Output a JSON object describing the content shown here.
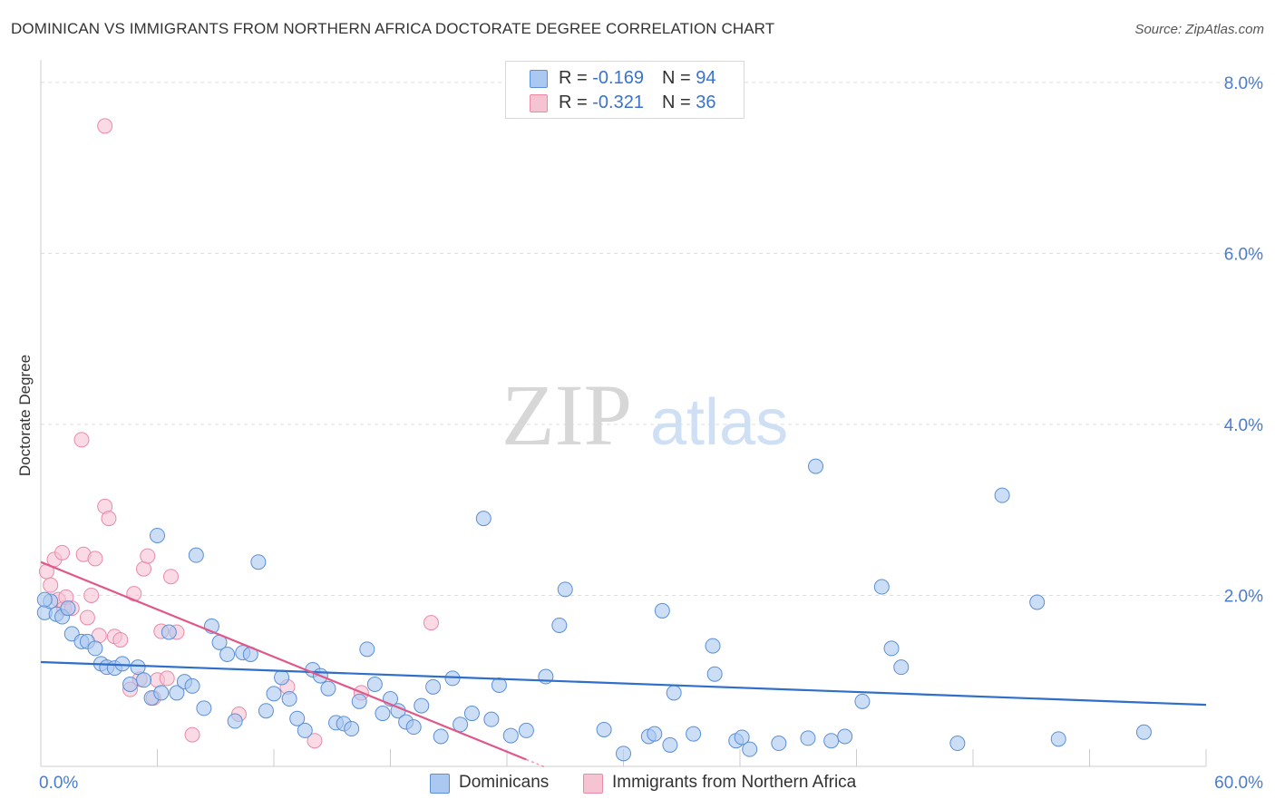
{
  "title": "DOMINICAN VS IMMIGRANTS FROM NORTHERN AFRICA DOCTORATE DEGREE CORRELATION CHART",
  "source": "Source: ZipAtlas.com",
  "watermark": {
    "zip": "ZIP",
    "atlas": "atlas"
  },
  "legend": {
    "rows": [
      {
        "r_label": "R = ",
        "r_value": "-0.169",
        "n_label": "N = ",
        "n_value": "94"
      },
      {
        "r_label": "R = ",
        "r_value": "-0.321",
        "n_label": "N = ",
        "n_value": "36"
      }
    ],
    "bottom": [
      {
        "label": "Dominicans"
      },
      {
        "label": "Immigrants from Northern Africa"
      }
    ]
  },
  "colors": {
    "blue_fill": "#aac8f0",
    "blue_stroke": "#5b8fd6",
    "blue_line": "#2f6fc9",
    "pink_fill": "#f6c3d3",
    "pink_stroke": "#e88aa8",
    "pink_line": "#e0588a",
    "tick_text": "#4a7ccf",
    "grid": "#dddddd"
  },
  "chart_data": {
    "type": "scatter",
    "title": "DOMINICAN VS IMMIGRANTS FROM NORTHERN AFRICA DOCTORATE DEGREE CORRELATION CHART",
    "xlabel": "",
    "ylabel": "Doctorate Degree",
    "xlim": [
      0,
      60
    ],
    "ylim": [
      0,
      8.2
    ],
    "x_tick_labels": [
      "0.0%",
      "60.0%"
    ],
    "y_ticks": [
      2.0,
      4.0,
      6.0,
      8.0
    ],
    "y_tick_labels": [
      "2.0%",
      "4.0%",
      "6.0%",
      "8.0%"
    ],
    "grid": true,
    "legend_position": "top-center",
    "series": [
      {
        "name": "Dominicans",
        "color": "#5b8fd6",
        "trend": {
          "x": [
            0,
            60
          ],
          "y": [
            1.22,
            0.72
          ]
        },
        "points": [
          [
            0.2,
            1.8
          ],
          [
            0.5,
            1.93
          ],
          [
            0.8,
            1.78
          ],
          [
            1.1,
            1.75
          ],
          [
            1.4,
            1.85
          ],
          [
            1.6,
            1.55
          ],
          [
            2.1,
            1.46
          ],
          [
            2.4,
            1.46
          ],
          [
            2.8,
            1.38
          ],
          [
            3.1,
            1.2
          ],
          [
            3.4,
            1.16
          ],
          [
            3.8,
            1.15
          ],
          [
            4.2,
            1.2
          ],
          [
            4.6,
            0.96
          ],
          [
            5.0,
            1.16
          ],
          [
            5.3,
            1.01
          ],
          [
            5.7,
            0.8
          ],
          [
            6.0,
            2.7
          ],
          [
            6.2,
            0.86
          ],
          [
            6.6,
            1.57
          ],
          [
            7.0,
            0.86
          ],
          [
            7.4,
            0.99
          ],
          [
            7.8,
            0.94
          ],
          [
            8.0,
            2.47
          ],
          [
            8.4,
            0.68
          ],
          [
            8.8,
            1.64
          ],
          [
            9.2,
            1.45
          ],
          [
            9.6,
            1.31
          ],
          [
            10.0,
            0.53
          ],
          [
            10.4,
            1.33
          ],
          [
            10.8,
            1.31
          ],
          [
            11.2,
            2.39
          ],
          [
            11.6,
            0.65
          ],
          [
            12.0,
            0.85
          ],
          [
            12.4,
            1.04
          ],
          [
            12.8,
            0.79
          ],
          [
            13.2,
            0.56
          ],
          [
            13.6,
            0.42
          ],
          [
            14.0,
            1.13
          ],
          [
            14.4,
            1.06
          ],
          [
            14.8,
            0.91
          ],
          [
            15.2,
            0.51
          ],
          [
            15.6,
            0.5
          ],
          [
            16.0,
            0.44
          ],
          [
            16.4,
            0.76
          ],
          [
            16.8,
            1.37
          ],
          [
            17.2,
            0.96
          ],
          [
            17.6,
            0.62
          ],
          [
            18.0,
            0.79
          ],
          [
            18.4,
            0.65
          ],
          [
            18.8,
            0.52
          ],
          [
            19.2,
            0.46
          ],
          [
            19.6,
            0.71
          ],
          [
            20.2,
            0.93
          ],
          [
            20.6,
            0.35
          ],
          [
            21.2,
            1.03
          ],
          [
            21.6,
            0.49
          ],
          [
            22.2,
            0.62
          ],
          [
            22.8,
            2.9
          ],
          [
            23.2,
            0.55
          ],
          [
            23.6,
            0.95
          ],
          [
            24.2,
            0.36
          ],
          [
            25.0,
            0.42
          ],
          [
            26.0,
            1.05
          ],
          [
            26.7,
            1.65
          ],
          [
            27.0,
            2.07
          ],
          [
            29.0,
            0.43
          ],
          [
            30.0,
            0.15
          ],
          [
            31.3,
            0.35
          ],
          [
            31.6,
            0.38
          ],
          [
            32.0,
            1.82
          ],
          [
            32.4,
            0.25
          ],
          [
            32.6,
            0.86
          ],
          [
            33.6,
            0.38
          ],
          [
            34.6,
            1.41
          ],
          [
            34.7,
            1.08
          ],
          [
            35.8,
            0.3
          ],
          [
            36.1,
            0.34
          ],
          [
            36.5,
            0.2
          ],
          [
            38.0,
            0.27
          ],
          [
            39.5,
            0.33
          ],
          [
            39.9,
            3.51
          ],
          [
            40.7,
            0.3
          ],
          [
            41.4,
            0.35
          ],
          [
            42.3,
            0.76
          ],
          [
            43.3,
            2.1
          ],
          [
            43.8,
            1.38
          ],
          [
            44.3,
            1.16
          ],
          [
            47.2,
            0.27
          ],
          [
            49.5,
            3.17
          ],
          [
            51.3,
            1.92
          ],
          [
            52.4,
            0.32
          ],
          [
            56.8,
            0.4
          ],
          [
            0.2,
            1.95
          ]
        ]
      },
      {
        "name": "Immigrants from Northern Africa",
        "color": "#e88aa8",
        "trend": {
          "x": [
            0,
            25
          ],
          "y": [
            2.39,
            0.08
          ]
        },
        "points": [
          [
            0.3,
            2.28
          ],
          [
            0.5,
            2.12
          ],
          [
            0.7,
            2.42
          ],
          [
            0.9,
            1.95
          ],
          [
            1.1,
            2.5
          ],
          [
            1.2,
            1.85
          ],
          [
            1.3,
            1.98
          ],
          [
            1.6,
            1.85
          ],
          [
            2.1,
            3.82
          ],
          [
            2.2,
            2.48
          ],
          [
            2.4,
            1.74
          ],
          [
            2.6,
            2.0
          ],
          [
            2.8,
            2.43
          ],
          [
            3.0,
            1.53
          ],
          [
            3.3,
            7.49
          ],
          [
            3.3,
            3.04
          ],
          [
            3.5,
            2.9
          ],
          [
            3.8,
            1.52
          ],
          [
            4.1,
            1.48
          ],
          [
            4.6,
            0.9
          ],
          [
            4.8,
            2.02
          ],
          [
            5.1,
            1.02
          ],
          [
            5.3,
            2.31
          ],
          [
            5.5,
            2.46
          ],
          [
            5.8,
            0.8
          ],
          [
            6.0,
            1.01
          ],
          [
            6.2,
            1.58
          ],
          [
            6.5,
            1.03
          ],
          [
            6.7,
            2.22
          ],
          [
            7.0,
            1.57
          ],
          [
            7.8,
            0.37
          ],
          [
            10.2,
            0.61
          ],
          [
            12.7,
            0.93
          ],
          [
            14.1,
            0.3
          ],
          [
            16.5,
            0.86
          ],
          [
            20.1,
            1.68
          ]
        ]
      }
    ]
  }
}
